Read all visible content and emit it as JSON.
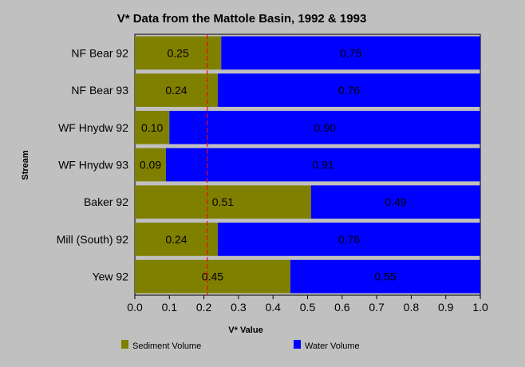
{
  "chart_data": {
    "type": "bar",
    "orientation": "horizontal",
    "stacked": true,
    "title": "V* Data from the Mattole Basin, 1992 & 1993",
    "xlabel": "V* Value",
    "ylabel": "Stream",
    "xlim": [
      0,
      1
    ],
    "x_ticks": [
      "0.0",
      "0.1",
      "0.2",
      "0.3",
      "0.4",
      "0.5",
      "0.6",
      "0.7",
      "0.8",
      "0.9",
      "1.0"
    ],
    "categories": [
      "NF Bear 92",
      "NF Bear 93",
      "WF Hnydw 92",
      "WF Hnydw 93",
      "Baker 92",
      "Mill (South) 92",
      "Yew 92"
    ],
    "series": [
      {
        "name": "Sediment Volume",
        "color": "#808000",
        "values": [
          0.25,
          0.24,
          0.1,
          0.09,
          0.51,
          0.24,
          0.45
        ],
        "labels": [
          "0.25",
          "0.24",
          "0.10",
          "0.09",
          "0.51",
          "0.24",
          "0.45"
        ]
      },
      {
        "name": "Water Volume",
        "color": "#0000ff",
        "values": [
          0.75,
          0.76,
          0.9,
          0.91,
          0.49,
          0.76,
          0.55
        ],
        "labels": [
          "0.75",
          "0.76",
          "0.90",
          "0.91",
          "0.49",
          "0.76",
          "0.55"
        ]
      }
    ],
    "reference_line": {
      "value": 0.21,
      "color": "#ff0000",
      "style": "dashed"
    },
    "grid": false,
    "legend_position": "bottom"
  }
}
